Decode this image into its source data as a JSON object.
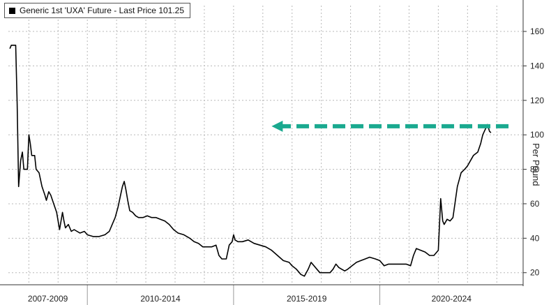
{
  "legend": {
    "label": "Generic 1st 'UXA' Future - Last Price 101.25"
  },
  "colors": {
    "line": "#000000",
    "grid": "#b8b8b8",
    "arrow": "#1aa98f",
    "axis": "#333333"
  },
  "chart_data": {
    "type": "line",
    "title": "",
    "ylabel": "Per Pound",
    "xlabel": "",
    "ylim": [
      13,
      175
    ],
    "yticks": [
      20,
      40,
      60,
      80,
      100,
      120,
      140,
      160
    ],
    "xlim": [
      2007.3,
      2024.9
    ],
    "x_categories": [
      {
        "label": "2007-2009",
        "from": 2007.3,
        "to": 2010.0
      },
      {
        "label": "2010-2014",
        "from": 2010.0,
        "to": 2015.0
      },
      {
        "label": "2015-2019",
        "from": 2015.0,
        "to": 2020.0
      },
      {
        "label": "2020-2024",
        "from": 2020.0,
        "to": 2024.9
      }
    ],
    "grid": true,
    "legend_position": "top-left",
    "last_price": 101.25,
    "annotation": {
      "type": "dashed-arrow",
      "from": [
        2024.4,
        105
      ],
      "to": [
        2016.3,
        105
      ],
      "direction": "left"
    },
    "series": [
      {
        "name": "Generic 1st 'UXA' Future - Last Price",
        "points": [
          [
            2007.35,
            150
          ],
          [
            2007.4,
            152
          ],
          [
            2007.55,
            152
          ],
          [
            2007.6,
            118
          ],
          [
            2007.65,
            70
          ],
          [
            2007.72,
            85
          ],
          [
            2007.78,
            90
          ],
          [
            2007.83,
            80
          ],
          [
            2007.9,
            80
          ],
          [
            2007.95,
            80
          ],
          [
            2008.0,
            100
          ],
          [
            2008.05,
            95
          ],
          [
            2008.1,
            88
          ],
          [
            2008.2,
            88
          ],
          [
            2008.25,
            80
          ],
          [
            2008.35,
            78
          ],
          [
            2008.45,
            70
          ],
          [
            2008.55,
            65
          ],
          [
            2008.6,
            62
          ],
          [
            2008.68,
            67
          ],
          [
            2008.75,
            65
          ],
          [
            2008.85,
            60
          ],
          [
            2008.95,
            55
          ],
          [
            2009.05,
            45
          ],
          [
            2009.15,
            55
          ],
          [
            2009.2,
            50
          ],
          [
            2009.25,
            46
          ],
          [
            2009.35,
            48
          ],
          [
            2009.45,
            44
          ],
          [
            2009.55,
            45
          ],
          [
            2009.65,
            44
          ],
          [
            2009.75,
            43
          ],
          [
            2009.9,
            44
          ],
          [
            2010.0,
            42
          ],
          [
            2010.2,
            41
          ],
          [
            2010.4,
            41
          ],
          [
            2010.6,
            42
          ],
          [
            2010.75,
            44
          ],
          [
            2010.85,
            48
          ],
          [
            2010.95,
            52
          ],
          [
            2011.05,
            58
          ],
          [
            2011.15,
            66
          ],
          [
            2011.2,
            70
          ],
          [
            2011.26,
            73
          ],
          [
            2011.32,
            68
          ],
          [
            2011.38,
            62
          ],
          [
            2011.45,
            56
          ],
          [
            2011.55,
            55
          ],
          [
            2011.65,
            53
          ],
          [
            2011.75,
            52
          ],
          [
            2011.9,
            52
          ],
          [
            2012.05,
            53
          ],
          [
            2012.2,
            52
          ],
          [
            2012.35,
            52
          ],
          [
            2012.5,
            51
          ],
          [
            2012.65,
            50
          ],
          [
            2012.8,
            48
          ],
          [
            2012.95,
            45
          ],
          [
            2013.1,
            43
          ],
          [
            2013.3,
            42
          ],
          [
            2013.5,
            40
          ],
          [
            2013.65,
            38
          ],
          [
            2013.8,
            37
          ],
          [
            2013.95,
            35
          ],
          [
            2014.1,
            35
          ],
          [
            2014.25,
            35
          ],
          [
            2014.4,
            36
          ],
          [
            2014.5,
            30
          ],
          [
            2014.6,
            28
          ],
          [
            2014.75,
            28
          ],
          [
            2014.85,
            36
          ],
          [
            2014.95,
            38
          ],
          [
            2015.0,
            42
          ],
          [
            2015.05,
            39
          ],
          [
            2015.15,
            38
          ],
          [
            2015.3,
            38
          ],
          [
            2015.5,
            39
          ],
          [
            2015.7,
            37
          ],
          [
            2015.9,
            36
          ],
          [
            2016.1,
            35
          ],
          [
            2016.3,
            33
          ],
          [
            2016.5,
            30
          ],
          [
            2016.7,
            27
          ],
          [
            2016.9,
            26
          ],
          [
            2017.0,
            24
          ],
          [
            2017.15,
            22
          ],
          [
            2017.3,
            19
          ],
          [
            2017.42,
            18
          ],
          [
            2017.55,
            22
          ],
          [
            2017.65,
            26
          ],
          [
            2017.75,
            24
          ],
          [
            2017.85,
            22
          ],
          [
            2017.95,
            20
          ],
          [
            2018.1,
            20
          ],
          [
            2018.2,
            20
          ],
          [
            2018.3,
            20
          ],
          [
            2018.4,
            22
          ],
          [
            2018.5,
            25
          ],
          [
            2018.6,
            23
          ],
          [
            2018.7,
            22
          ],
          [
            2018.8,
            21
          ],
          [
            2018.9,
            22
          ],
          [
            2019.05,
            24
          ],
          [
            2019.2,
            26
          ],
          [
            2019.35,
            27
          ],
          [
            2019.5,
            28
          ],
          [
            2019.65,
            29
          ],
          [
            2019.85,
            28
          ],
          [
            2020.0,
            27
          ],
          [
            2020.15,
            24
          ],
          [
            2020.3,
            25
          ],
          [
            2020.5,
            25
          ],
          [
            2020.7,
            25
          ],
          [
            2020.9,
            25
          ],
          [
            2021.05,
            24
          ],
          [
            2021.15,
            30
          ],
          [
            2021.25,
            34
          ],
          [
            2021.4,
            33
          ],
          [
            2021.55,
            32
          ],
          [
            2021.7,
            30
          ],
          [
            2021.85,
            30
          ],
          [
            2022.0,
            33
          ],
          [
            2022.08,
            63
          ],
          [
            2022.15,
            50
          ],
          [
            2022.2,
            48
          ],
          [
            2022.3,
            51
          ],
          [
            2022.4,
            50
          ],
          [
            2022.5,
            52
          ],
          [
            2022.65,
            70
          ],
          [
            2022.78,
            78
          ],
          [
            2022.9,
            80
          ],
          [
            2023.0,
            82
          ],
          [
            2023.1,
            85
          ],
          [
            2023.2,
            88
          ],
          [
            2023.35,
            90
          ],
          [
            2023.45,
            95
          ],
          [
            2023.52,
            100
          ],
          [
            2023.6,
            103
          ],
          [
            2023.68,
            106
          ],
          [
            2023.75,
            102
          ],
          [
            2023.8,
            101.25
          ]
        ]
      }
    ]
  }
}
